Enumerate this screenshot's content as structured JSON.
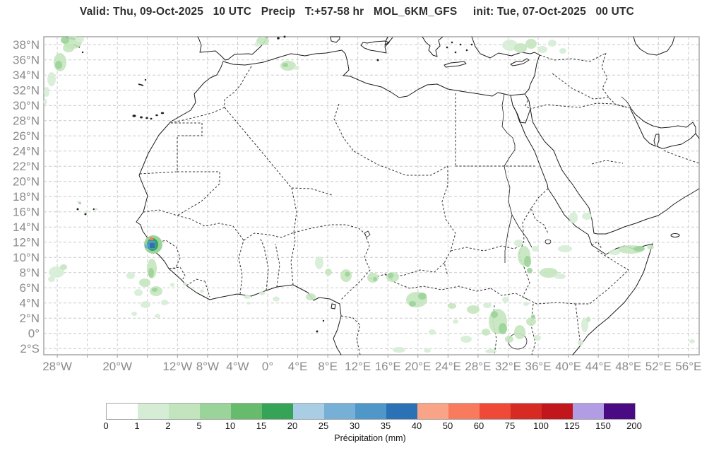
{
  "title": {
    "text": "Valid: Thu, 09-Oct-2025   10 UTC   Precip   T:+57-58 hr   MOL_6KM_GFS     init: Tue, 07-Oct-2025   00 UTC"
  },
  "axes": {
    "lat_ticks": [
      {
        "label": "38°N",
        "lat": 38
      },
      {
        "label": "36°N",
        "lat": 36
      },
      {
        "label": "34°N",
        "lat": 34
      },
      {
        "label": "32°N",
        "lat": 32
      },
      {
        "label": "30°N",
        "lat": 30
      },
      {
        "label": "28°N",
        "lat": 28
      },
      {
        "label": "26°N",
        "lat": 26
      },
      {
        "label": "24°N",
        "lat": 24
      },
      {
        "label": "22°N",
        "lat": 22
      },
      {
        "label": "20°N",
        "lat": 20
      },
      {
        "label": "18°N",
        "lat": 18
      },
      {
        "label": "16°N",
        "lat": 16
      },
      {
        "label": "14°N",
        "lat": 14
      },
      {
        "label": "12°N",
        "lat": 12
      },
      {
        "label": "10°N",
        "lat": 10
      },
      {
        "label": "8°N",
        "lat": 8
      },
      {
        "label": "6°N",
        "lat": 6
      },
      {
        "label": "4°N",
        "lat": 4
      },
      {
        "label": "2°N",
        "lat": 2
      },
      {
        "label": "0°",
        "lat": 0
      },
      {
        "label": "2°S",
        "lat": -2
      }
    ],
    "lon_ticks": [
      {
        "label": "28°W",
        "lon": -28
      },
      {
        "label": "20°W",
        "lon": -20
      },
      {
        "label": "12°W",
        "lon": -12
      },
      {
        "label": "8°W",
        "lon": -8
      },
      {
        "label": "4°W",
        "lon": -4
      },
      {
        "label": "0°",
        "lon": 0
      },
      {
        "label": "4°E",
        "lon": 4
      },
      {
        "label": "8°E",
        "lon": 8
      },
      {
        "label": "12°E",
        "lon": 12
      },
      {
        "label": "16°E",
        "lon": 16
      },
      {
        "label": "20°E",
        "lon": 20
      },
      {
        "label": "24°E",
        "lon": 24
      },
      {
        "label": "28°E",
        "lon": 28
      },
      {
        "label": "32°E",
        "lon": 32
      },
      {
        "label": "36°E",
        "lon": 36
      },
      {
        "label": "40°E",
        "lon": 40
      },
      {
        "label": "44°E",
        "lon": 44
      },
      {
        "label": "48°E",
        "lon": 48
      },
      {
        "label": "52°E",
        "lon": 52
      },
      {
        "label": "56°E",
        "lon": 56
      }
    ]
  },
  "grid": {
    "lons": [
      -28,
      -24,
      -20,
      -16,
      -12,
      -8,
      -4,
      0,
      4,
      8,
      12,
      16,
      20,
      24,
      28,
      32,
      36,
      40,
      44,
      48,
      52,
      56
    ],
    "lats": [
      38,
      36,
      34,
      32,
      30,
      28,
      26,
      24,
      22,
      20,
      18,
      16,
      14,
      12,
      10,
      8,
      6,
      4,
      2,
      0,
      -2
    ]
  },
  "colorbar": {
    "caption": "Précipitation (mm)",
    "boundary_labels": [
      "0",
      "1",
      "2",
      "5",
      "10",
      "15",
      "20",
      "25",
      "30",
      "35",
      "40",
      "50",
      "60",
      "75",
      "100",
      "125",
      "150",
      "200"
    ],
    "colors": [
      "#ffffff",
      "#d6edd5",
      "#c3e5bd",
      "#9bd49a",
      "#66bb6d",
      "#36a456",
      "#a9cde5",
      "#77b0d6",
      "#4e97c8",
      "#2a72b5",
      "#f9a487",
      "#f97b5d",
      "#ef4a37",
      "#d62a23",
      "#c1161b",
      "#b29ce4",
      "#4a0a84"
    ]
  },
  "chart_data": {
    "type": "heatmap",
    "quantity": "precipitation",
    "units": "mm",
    "level_scale_mm": [
      0,
      1,
      2,
      5,
      10,
      15,
      20,
      25,
      30,
      35,
      40,
      50,
      60,
      75,
      100,
      125,
      150,
      200
    ],
    "blob_format": "[x_px, y_px, rx_px, ry_px, color_index]",
    "blobs": [
      [
        103,
        60,
        13,
        9,
        2
      ],
      [
        92,
        57,
        6,
        5,
        3
      ],
      [
        113,
        56,
        6,
        4,
        1
      ],
      [
        97,
        68,
        8,
        6,
        2
      ],
      [
        85,
        88,
        9,
        13,
        2
      ],
      [
        83,
        92,
        5,
        6,
        3
      ],
      [
        73,
        112,
        6,
        10,
        1
      ],
      [
        66,
        130,
        4,
        7,
        1
      ],
      [
        64,
        144,
        2.5,
        4,
        1
      ],
      [
        372,
        58,
        9,
        6,
        2
      ],
      [
        364,
        63,
        4,
        3,
        1
      ],
      [
        408,
        93,
        11,
        7,
        2
      ],
      [
        404,
        92,
        4,
        3,
        3
      ],
      [
        420,
        96,
        4,
        3,
        1
      ],
      [
        722,
        64,
        11,
        8,
        1
      ],
      [
        737,
        68,
        9,
        7,
        2
      ],
      [
        752,
        62,
        8,
        7,
        2
      ],
      [
        768,
        70,
        7,
        5,
        1
      ],
      [
        782,
        61,
        6,
        5,
        1
      ],
      [
        797,
        72,
        5,
        4,
        1
      ],
      [
        112,
        286,
        3,
        2,
        1
      ],
      [
        122,
        300,
        3,
        2,
        1
      ],
      [
        136,
        296,
        2.5,
        2,
        1
      ],
      [
        215,
        380,
        7,
        14,
        2
      ],
      [
        214,
        386,
        4,
        7,
        3
      ],
      [
        80,
        385,
        11,
        8,
        1
      ],
      [
        90,
        378,
        5,
        4,
        2
      ],
      [
        73,
        395,
        5,
        4,
        1
      ],
      [
        185,
        390,
        6,
        5,
        1
      ],
      [
        205,
        400,
        8,
        6,
        2
      ],
      [
        196,
        414,
        6,
        5,
        1
      ],
      [
        221,
        412,
        9,
        7,
        2
      ],
      [
        219,
        410,
        4,
        3,
        3
      ],
      [
        233,
        428,
        5,
        4,
        1
      ],
      [
        206,
        431,
        7,
        5,
        1
      ],
      [
        190,
        444,
        4,
        3,
        1
      ],
      [
        223,
        447,
        4,
        3,
        1
      ],
      [
        244,
        403,
        3,
        3,
        1
      ],
      [
        262,
        402,
        3,
        2.5,
        1
      ],
      [
        286,
        412,
        3,
        2.5,
        1
      ],
      [
        350,
        420,
        5,
        3,
        1
      ],
      [
        371,
        415,
        4,
        3,
        1
      ],
      [
        391,
        423,
        5,
        3.5,
        1
      ],
      [
        440,
        420,
        7,
        5,
        2
      ],
      [
        352,
        429,
        3,
        2,
        1
      ],
      [
        452,
        372,
        6,
        9,
        1
      ],
      [
        465,
        385,
        5,
        5,
        2
      ],
      [
        490,
        390,
        8,
        9,
        2
      ],
      [
        492,
        388,
        3.5,
        3.5,
        3
      ],
      [
        528,
        393,
        8,
        7,
        2
      ],
      [
        531,
        395,
        3,
        3,
        3
      ],
      [
        556,
        392,
        9,
        7,
        2
      ],
      [
        553,
        390,
        4,
        4,
        3
      ],
      [
        590,
        424,
        15,
        11,
        2
      ],
      [
        598,
        419,
        6,
        5,
        3
      ],
      [
        584,
        430,
        5,
        4,
        3
      ],
      [
        640,
        433,
        6,
        4,
        2
      ],
      [
        670,
        438,
        9,
        6,
        2
      ],
      [
        612,
        470,
        5,
        4,
        1
      ],
      [
        645,
        455,
        4,
        3,
        1
      ],
      [
        660,
        480,
        8,
        5,
        1
      ],
      [
        688,
        470,
        6,
        5,
        2
      ],
      [
        565,
        495,
        9,
        4,
        1
      ],
      [
        605,
        496,
        5,
        3,
        1
      ],
      [
        695,
        497,
        8,
        3,
        1
      ],
      [
        742,
        362,
        9,
        14,
        2
      ],
      [
        747,
        370,
        5,
        8,
        3
      ],
      [
        750,
        383,
        4,
        4,
        3
      ],
      [
        734,
        344,
        6,
        5,
        1
      ],
      [
        758,
        352,
        5,
        4,
        1
      ],
      [
        777,
        386,
        13,
        7,
        2
      ],
      [
        793,
        391,
        8,
        4,
        1
      ],
      [
        800,
        352,
        10,
        5,
        1
      ],
      [
        812,
        308,
        6,
        8,
        1
      ],
      [
        831,
        306,
        7,
        5,
        1
      ],
      [
        870,
        357,
        8,
        4,
        1
      ],
      [
        893,
        353,
        18,
        6,
        2
      ],
      [
        905,
        352,
        8,
        4,
        3
      ],
      [
        921,
        350,
        5,
        3,
        2
      ],
      [
        828,
        460,
        5,
        10,
        1
      ],
      [
        833,
        452,
        3,
        4,
        2
      ],
      [
        822,
        485,
        4,
        4,
        1
      ],
      [
        980,
        483,
        4,
        3,
        1
      ],
      [
        705,
        455,
        13,
        18,
        2
      ],
      [
        700,
        445,
        5,
        5,
        3
      ],
      [
        712,
        465,
        6,
        8,
        3
      ],
      [
        721,
        480,
        6,
        5,
        2
      ],
      [
        736,
        470,
        8,
        10,
        2
      ],
      [
        752,
        455,
        7,
        6,
        2
      ],
      [
        755,
        448,
        3,
        3,
        3
      ],
      [
        761,
        478,
        5,
        4,
        1
      ],
      [
        690,
        432,
        6,
        4,
        1
      ],
      [
        716,
        424,
        5,
        4,
        1
      ],
      [
        745,
        430,
        4,
        3,
        1
      ]
    ],
    "hotspot": {
      "description": "intense precipitation cell near Guinea-Bissau",
      "halo_ellipses": [
        [
          217,
          346,
          13,
          13,
          3
        ],
        [
          216,
          346,
          8,
          9,
          5
        ]
      ],
      "rect_format": "[x,y,w,h,color_index]",
      "rects": [
        [
          209,
          341,
          11,
          11,
          8
        ],
        [
          212,
          344,
          7,
          7,
          9
        ],
        [
          205,
          346,
          4,
          5,
          7
        ],
        [
          212,
          336,
          5,
          4,
          11
        ]
      ]
    }
  }
}
